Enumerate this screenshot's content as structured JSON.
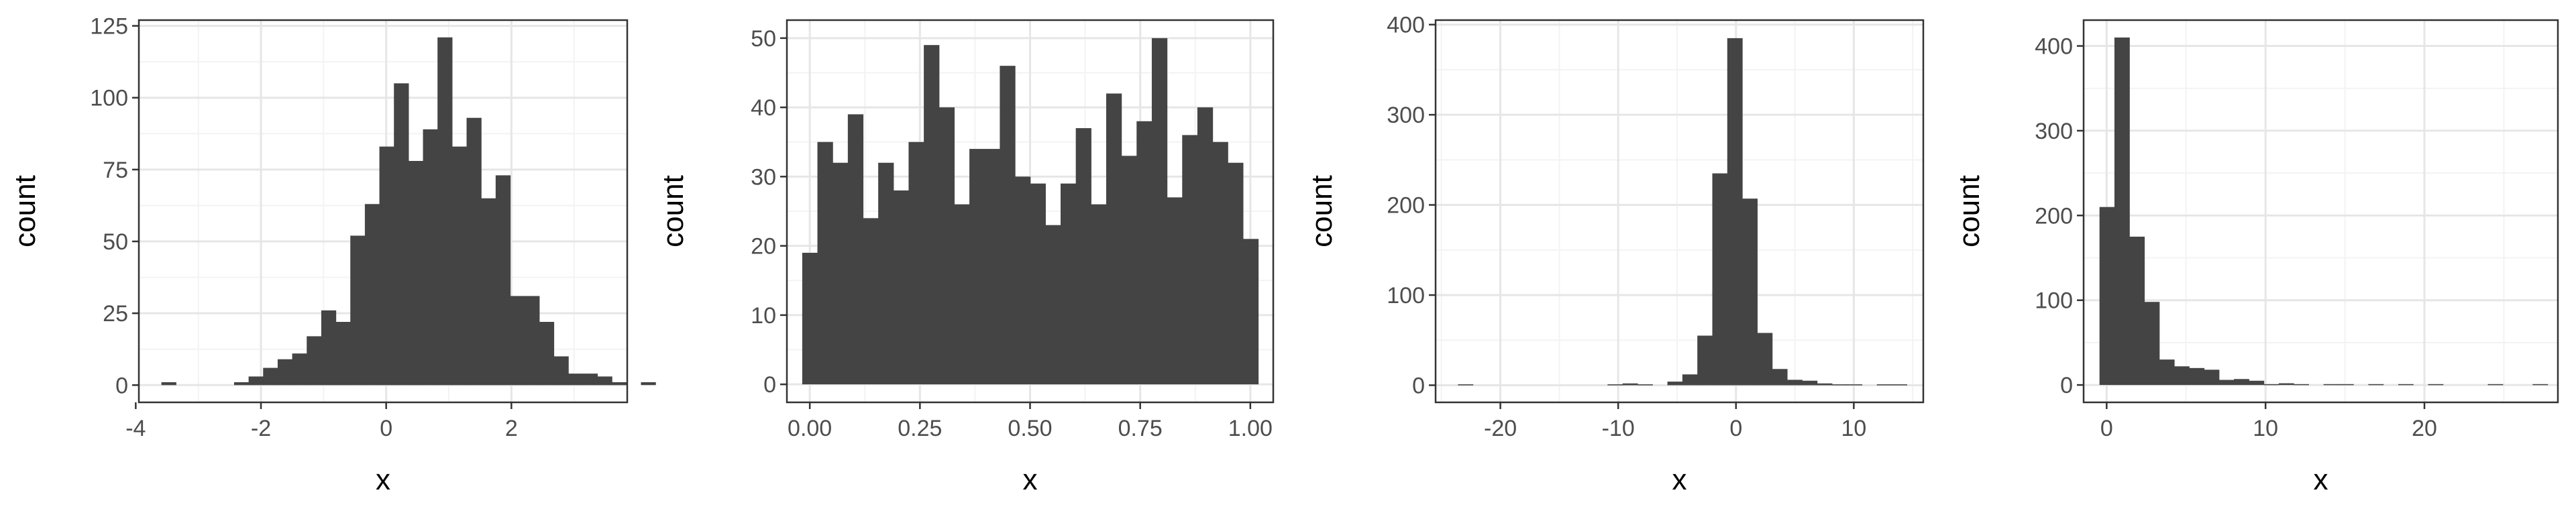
{
  "colors": {
    "bar": "#444444",
    "grid_major": "#e6e6e6",
    "grid_minor": "#f3f3f3",
    "panel_border": "#333333",
    "tick_text": "#4d4d4d"
  },
  "chart_data": [
    {
      "type": "bar",
      "subtype": "histogram",
      "xlabel": "x",
      "ylabel": "count",
      "xlim": [
        -3.95,
        3.85
      ],
      "ylim": [
        -6,
        127
      ],
      "xticks": [
        -4,
        -2,
        0,
        2
      ],
      "xtick_labels": [
        "-4",
        "-2",
        "0",
        "2"
      ],
      "yticks": [
        0,
        25,
        50,
        75,
        100,
        125
      ],
      "ytick_labels": [
        "0",
        "25",
        "50",
        "75",
        "100",
        "125"
      ],
      "grid": true,
      "bin_start": -3.59,
      "bin_width": 0.2321,
      "counts": [
        1,
        0,
        0,
        0,
        0,
        1,
        3,
        6,
        9,
        11,
        17,
        26,
        22,
        52,
        63,
        83,
        105,
        78,
        89,
        121,
        83,
        93,
        65,
        73,
        31,
        31,
        22,
        10,
        4,
        4,
        3,
        1,
        0,
        1
      ]
    },
    {
      "type": "bar",
      "subtype": "histogram",
      "xlabel": "x",
      "ylabel": "count",
      "xlim": [
        -0.052,
        1.052
      ],
      "ylim": [
        -2.6,
        52.6
      ],
      "xticks": [
        0,
        0.25,
        0.5,
        0.75,
        1
      ],
      "xtick_labels": [
        "0.00",
        "0.25",
        "0.50",
        "0.75",
        "1.00"
      ],
      "yticks": [
        0,
        10,
        20,
        30,
        40,
        50
      ],
      "ytick_labels": [
        "0",
        "10",
        "20",
        "30",
        "40",
        "50"
      ],
      "grid": true,
      "bin_start": -0.0172,
      "bin_width": 0.0345,
      "counts": [
        19,
        35,
        32,
        39,
        24,
        32,
        28,
        35,
        49,
        40,
        26,
        34,
        34,
        46,
        30,
        29,
        23,
        29,
        37,
        26,
        42,
        33,
        38,
        50,
        27,
        36,
        40,
        35,
        32,
        21
      ]
    },
    {
      "type": "bar",
      "subtype": "histogram",
      "xlabel": "x",
      "ylabel": "count",
      "xlim": [
        -25.5,
        15.9
      ],
      "ylim": [
        -19,
        405
      ],
      "xticks": [
        -20,
        -10,
        0,
        10
      ],
      "xtick_labels": [
        "-20",
        "-10",
        "0",
        "10"
      ],
      "yticks": [
        0,
        100,
        200,
        300,
        400
      ],
      "ytick_labels": [
        "0",
        "100",
        "200",
        "300",
        "400"
      ],
      "grid": true,
      "bin_start": -23.6,
      "bin_width": 1.27,
      "counts": [
        1,
        0,
        0,
        0,
        0,
        0,
        0,
        0,
        0,
        0,
        1,
        2,
        1,
        0,
        4,
        12,
        55,
        235,
        385,
        207,
        58,
        18,
        6,
        5,
        2,
        1,
        1,
        0,
        1,
        1
      ]
    },
    {
      "type": "bar",
      "subtype": "histogram",
      "xlabel": "x",
      "ylabel": "count",
      "xlim": [
        -1.45,
        28.4
      ],
      "ylim": [
        -20.5,
        430.5
      ],
      "xticks": [
        0,
        10,
        20
      ],
      "xtick_labels": [
        "0",
        "10",
        "20"
      ],
      "yticks": [
        0,
        100,
        200,
        300,
        400
      ],
      "ytick_labels": [
        "0",
        "100",
        "200",
        "300",
        "400"
      ],
      "grid": true,
      "bin_start": -0.45,
      "bin_width": 0.94,
      "counts": [
        210,
        410,
        175,
        98,
        30,
        22,
        20,
        18,
        6,
        7,
        5,
        1,
        2,
        1,
        0,
        1,
        1,
        0,
        1,
        0,
        1,
        0,
        1,
        0,
        0,
        0,
        1,
        0,
        0,
        1
      ]
    }
  ]
}
